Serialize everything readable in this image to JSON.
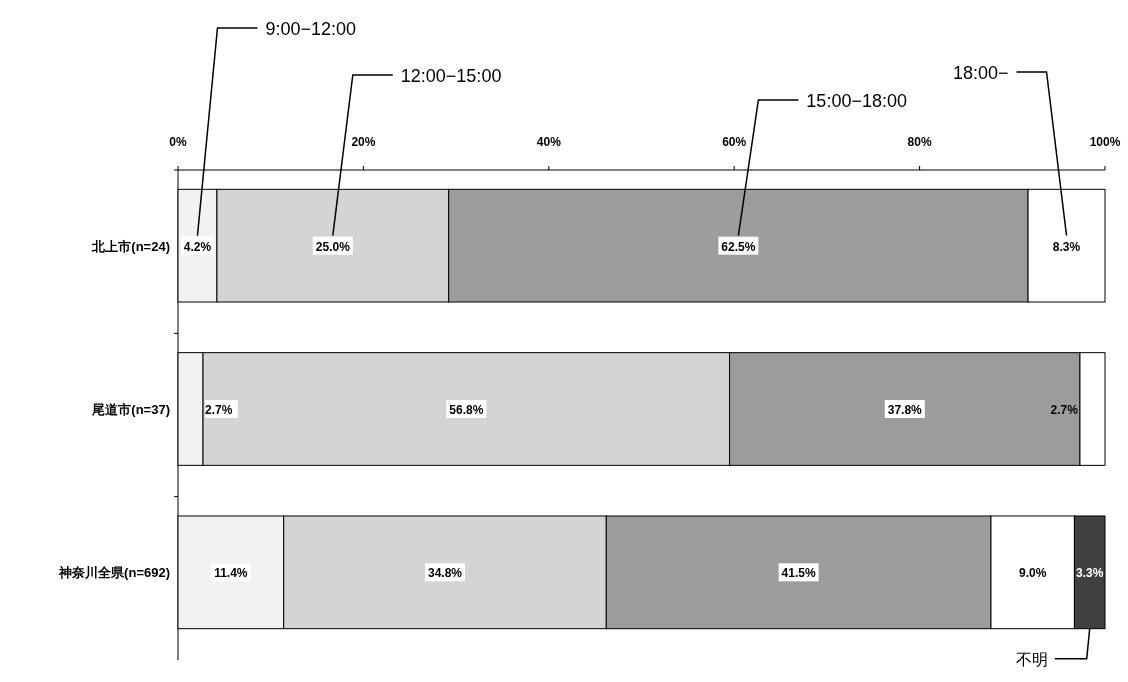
{
  "chart_data": {
    "type": "bar",
    "orientation": "horizontal",
    "stacked": true,
    "categories": [
      "北上市(n=24)",
      "尾道市(n=37)",
      "神奈川全県(n=692)"
    ],
    "series": [
      {
        "name": "9:00−12:00",
        "color": "#f2f2f2",
        "values": [
          4.2,
          2.7,
          11.4
        ],
        "value_labels": [
          "4.2%",
          "2.7%",
          "11.4%"
        ]
      },
      {
        "name": "12:00−15:00",
        "color": "#d4d4d4",
        "values": [
          25.0,
          56.8,
          34.8
        ],
        "value_labels": [
          "25.0%",
          "56.8%",
          "34.8%"
        ]
      },
      {
        "name": "15:00−18:00",
        "color": "#9c9c9c",
        "values": [
          62.5,
          37.8,
          41.5
        ],
        "value_labels": [
          "62.5%",
          "37.8%",
          "41.5%"
        ]
      },
      {
        "name": "18:00−",
        "color": "#ffffff",
        "values": [
          8.3,
          2.7,
          9.0
        ],
        "value_labels": [
          "8.3%",
          "2.7%",
          "9.0%"
        ]
      },
      {
        "name": "不明",
        "color": "#404040",
        "values": [
          null,
          null,
          3.3
        ],
        "value_labels": [
          null,
          null,
          "3.3%"
        ]
      }
    ],
    "xlim": [
      0,
      100
    ],
    "xticks": [
      {
        "value": 0,
        "label": "0%"
      },
      {
        "value": 20,
        "label": "20%"
      },
      {
        "value": 40,
        "label": "40%"
      },
      {
        "value": 60,
        "label": "60%"
      },
      {
        "value": 80,
        "label": "80%"
      },
      {
        "value": 100,
        "label": "100%"
      }
    ]
  }
}
